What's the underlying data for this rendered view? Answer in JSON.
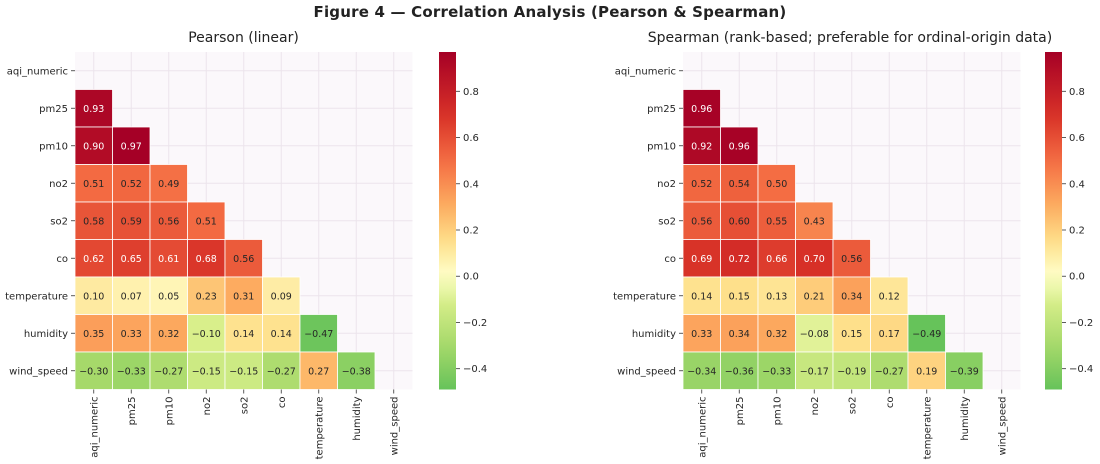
{
  "figure_title": "Figure 4 — Correlation Analysis (Pearson & Spearman)",
  "colors": {
    "low": "#66c35a",
    "mid": "#ffffcc",
    "high": "#a50026"
  },
  "chart_data": [
    {
      "type": "heatmap",
      "title": "Pearson (linear)",
      "variables": [
        "aqi_numeric",
        "pm25",
        "pm10",
        "no2",
        "so2",
        "co",
        "temperature",
        "humidity",
        "wind_speed"
      ],
      "mask": "upper-triangle-and-diagonal",
      "colorbar": {
        "range": [
          -0.49,
          0.97
        ],
        "ticks": [
          "0.8",
          "0.6",
          "0.4",
          "0.2",
          "0.0",
          "−0.2",
          "−0.4"
        ],
        "tick_values": [
          0.8,
          0.6,
          0.4,
          0.2,
          0.0,
          -0.2,
          -0.4
        ]
      },
      "values": [
        [
          null,
          null,
          null,
          null,
          null,
          null,
          null,
          null,
          null
        ],
        [
          0.93,
          null,
          null,
          null,
          null,
          null,
          null,
          null,
          null
        ],
        [
          0.9,
          0.97,
          null,
          null,
          null,
          null,
          null,
          null,
          null
        ],
        [
          0.51,
          0.52,
          0.49,
          null,
          null,
          null,
          null,
          null,
          null
        ],
        [
          0.58,
          0.59,
          0.56,
          0.51,
          null,
          null,
          null,
          null,
          null
        ],
        [
          0.62,
          0.65,
          0.61,
          0.68,
          0.56,
          null,
          null,
          null,
          null
        ],
        [
          0.1,
          0.07,
          0.05,
          0.23,
          0.31,
          0.09,
          null,
          null,
          null
        ],
        [
          0.35,
          0.33,
          0.32,
          -0.1,
          0.14,
          0.14,
          -0.47,
          null,
          null
        ],
        [
          -0.3,
          -0.33,
          -0.27,
          -0.15,
          -0.15,
          -0.27,
          0.27,
          -0.38,
          null
        ]
      ]
    },
    {
      "type": "heatmap",
      "title": "Spearman (rank-based; preferable for ordinal-origin data)",
      "variables": [
        "aqi_numeric",
        "pm25",
        "pm10",
        "no2",
        "so2",
        "co",
        "temperature",
        "humidity",
        "wind_speed"
      ],
      "mask": "upper-triangle-and-diagonal",
      "colorbar": {
        "range": [
          -0.49,
          0.97
        ],
        "ticks": [
          "0.8",
          "0.6",
          "0.4",
          "0.2",
          "0.0",
          "−0.2",
          "−0.4"
        ],
        "tick_values": [
          0.8,
          0.6,
          0.4,
          0.2,
          0.0,
          -0.2,
          -0.4
        ]
      },
      "values": [
        [
          null,
          null,
          null,
          null,
          null,
          null,
          null,
          null,
          null
        ],
        [
          0.96,
          null,
          null,
          null,
          null,
          null,
          null,
          null,
          null
        ],
        [
          0.92,
          0.96,
          null,
          null,
          null,
          null,
          null,
          null,
          null
        ],
        [
          0.52,
          0.54,
          0.5,
          null,
          null,
          null,
          null,
          null,
          null
        ],
        [
          0.56,
          0.6,
          0.55,
          0.43,
          null,
          null,
          null,
          null,
          null
        ],
        [
          0.69,
          0.72,
          0.66,
          0.7,
          0.56,
          null,
          null,
          null,
          null
        ],
        [
          0.14,
          0.15,
          0.13,
          0.21,
          0.34,
          0.12,
          null,
          null,
          null
        ],
        [
          0.33,
          0.34,
          0.32,
          -0.08,
          0.15,
          0.17,
          -0.49,
          null,
          null
        ],
        [
          -0.34,
          -0.36,
          -0.33,
          -0.17,
          -0.19,
          -0.27,
          0.19,
          -0.39,
          null
        ]
      ]
    }
  ]
}
